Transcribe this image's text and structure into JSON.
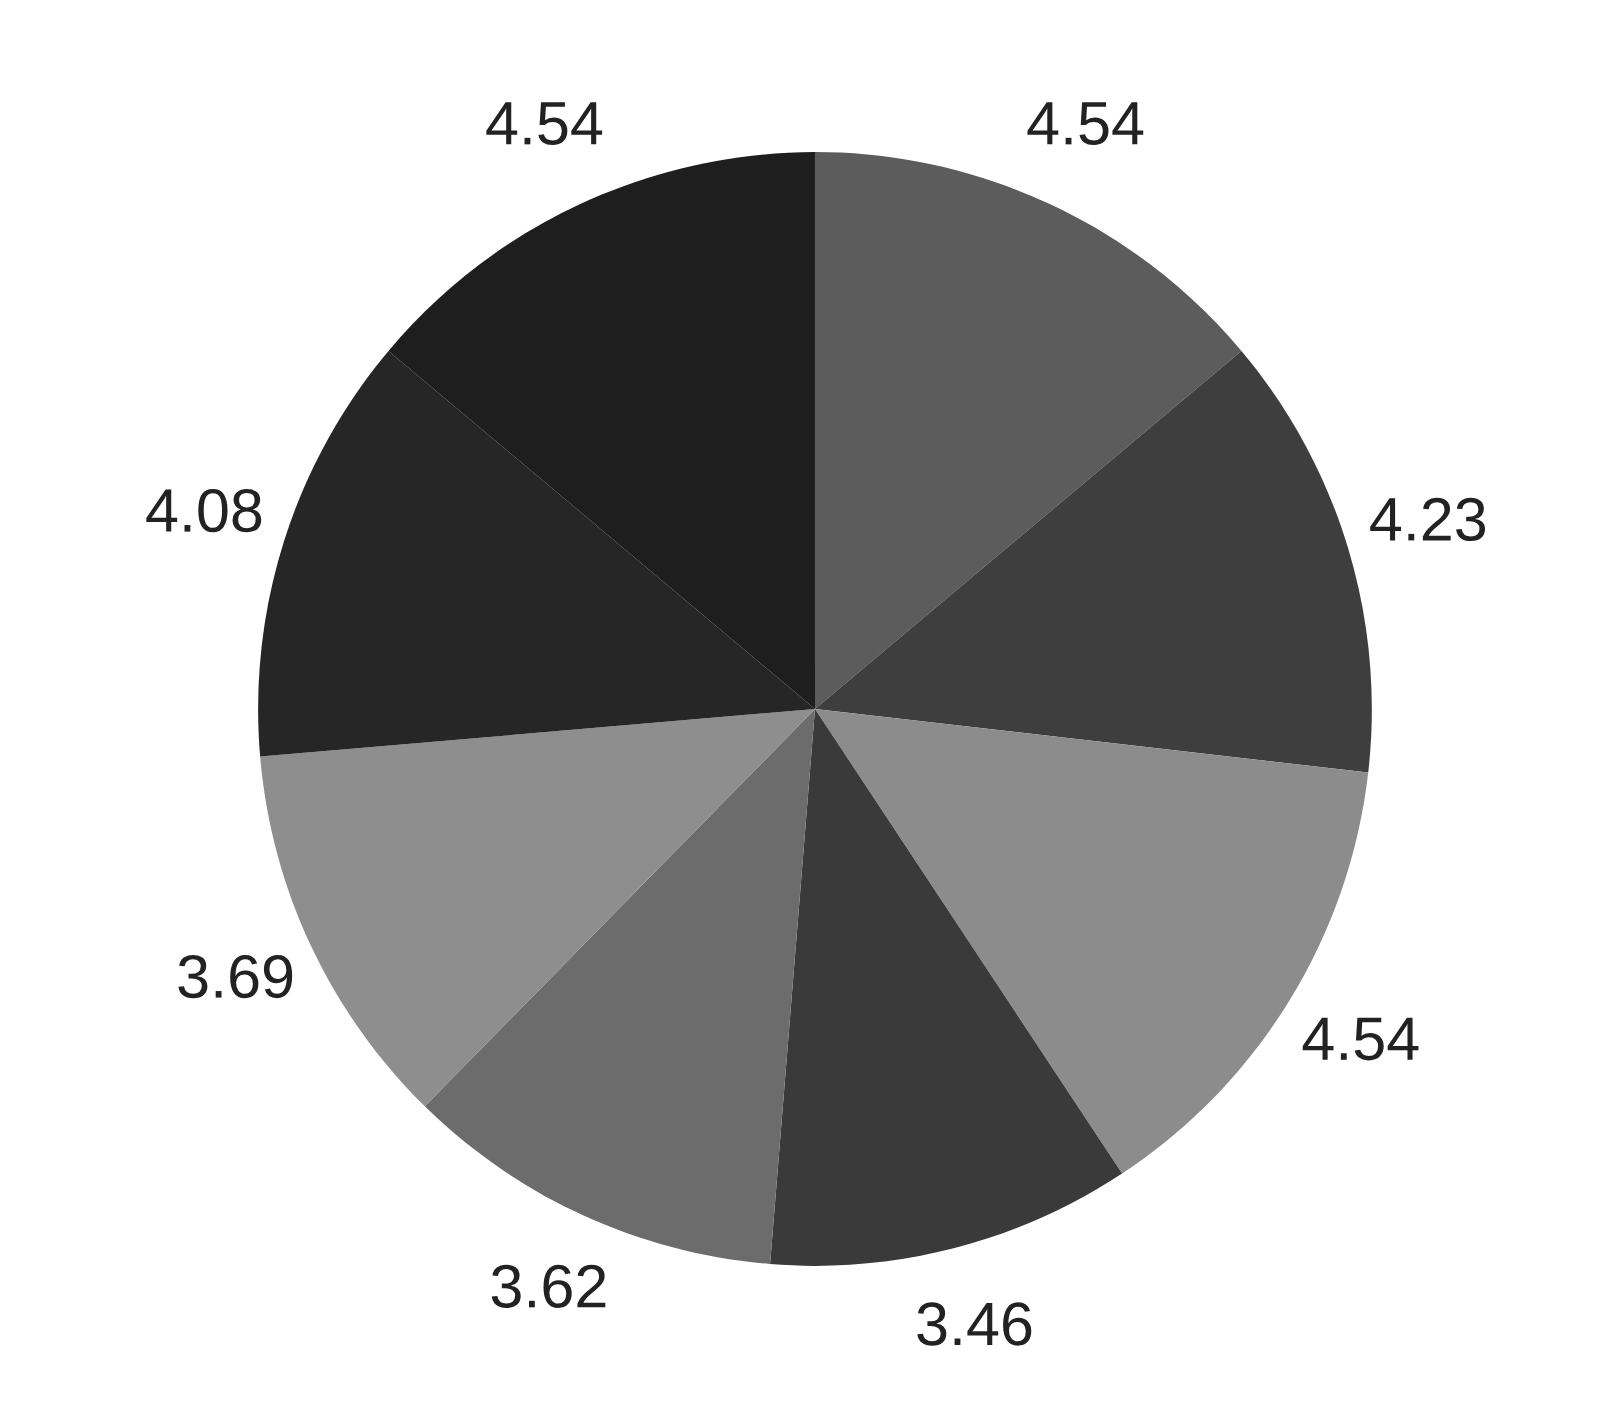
{
  "chart_data": {
    "type": "pie",
    "categories": [
      null,
      null,
      null,
      null,
      null,
      null,
      null,
      null
    ],
    "values": [
      4.54,
      4.23,
      4.54,
      3.46,
      3.62,
      3.69,
      4.08,
      4.54
    ],
    "colors": [
      "#5c5c5c",
      "#3e3e3e",
      "#8c8c8c",
      "#3a3a3a",
      "#6c6c6c",
      "#8e8e8e",
      "#262626",
      "#1e1e1e"
    ],
    "data_labels": true
  }
}
